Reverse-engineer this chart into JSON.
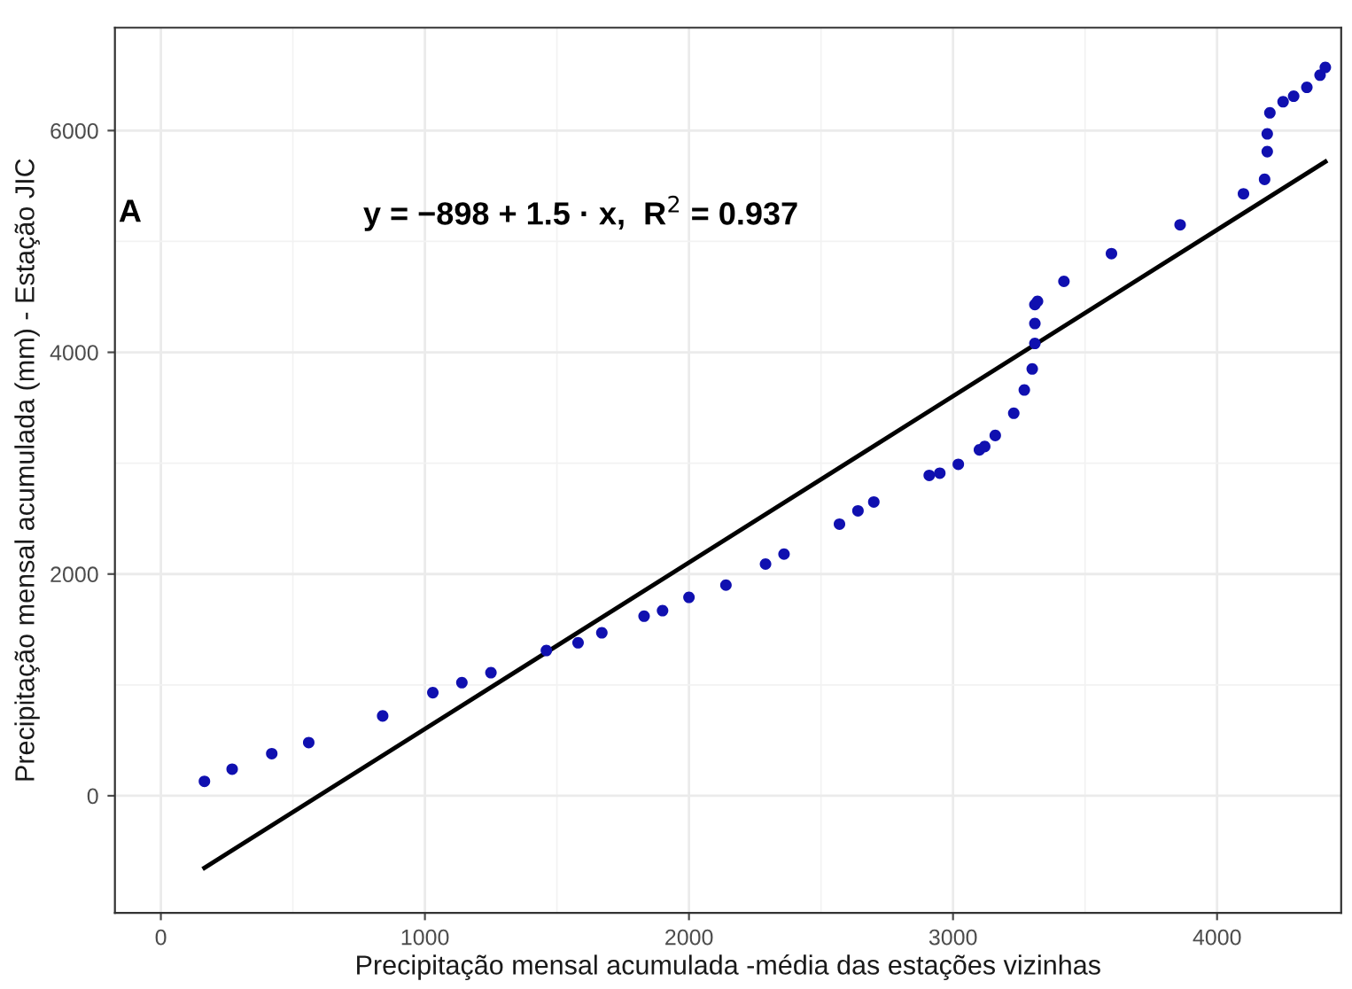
{
  "chart_data": {
    "type": "scatter",
    "xlabel": "Precipitação mensal acumulada -média das estações vizinhas",
    "ylabel": "Precipitação mensal acumulada (mm) - Estação JIC",
    "annotations": [
      "A",
      "y = −898 + 1.5 · x,  R$^{2}$ = 0.937"
    ],
    "series": [
      {
        "color": "#1010b0",
        "marker": "circle",
        "x": [
          165,
          270,
          420,
          560,
          840,
          1030,
          1140,
          1250,
          1460,
          1580,
          1670,
          1830,
          1900,
          2000,
          2140,
          2290,
          2360,
          2570,
          2640,
          2700,
          2910,
          2950,
          3020,
          3100,
          3120,
          3160,
          3230,
          3270,
          3300,
          3310,
          3310,
          3310,
          3320,
          3420,
          3600,
          3860,
          4100,
          4180,
          4190,
          4190,
          4200,
          4250,
          4290,
          4340,
          4390,
          4410
        ],
        "values": [
          130,
          240,
          380,
          480,
          720,
          930,
          1020,
          1110,
          1310,
          1380,
          1470,
          1620,
          1670,
          1790,
          1900,
          2090,
          2180,
          2450,
          2570,
          2650,
          2890,
          2910,
          2990,
          3120,
          3150,
          3250,
          3450,
          3660,
          3850,
          4080,
          4260,
          4430,
          4460,
          4640,
          4890,
          5150,
          5430,
          5560,
          5810,
          5970,
          6160,
          6260,
          6310,
          6390,
          6500,
          6570
        ]
      },
      {
        "type": "line",
        "color": "#000000",
        "line_style": "solid",
        "x": [
          165,
          4410
        ],
        "values": [
          -650,
          5720
        ]
      }
    ],
    "xlim": [
      -174,
      4470
    ],
    "ylim": [
      -1056,
      6928
    ],
    "xticks": [
      0,
      1000,
      2000,
      3000,
      4000
    ],
    "yticks": [
      0,
      2000,
      4000,
      6000
    ],
    "grid": true
  }
}
